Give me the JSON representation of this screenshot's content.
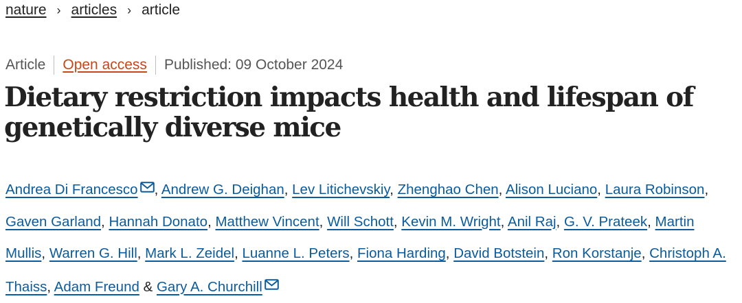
{
  "breadcrumb": {
    "items": [
      "nature",
      "articles"
    ],
    "current": "article",
    "separator": "›"
  },
  "meta": {
    "type": "Article",
    "access": "Open access",
    "published": "Published: 09 October 2024"
  },
  "title": "Dietary restriction impacts health and lifespan of genetically diverse mice",
  "authors": [
    "Andrea Di Francesco",
    "Andrew G. Deighan",
    "Lev Litichevskiy",
    "Zhenghao Chen",
    "Alison Luciano",
    "Laura Robinson",
    "Gaven Garland",
    "Hannah Donato",
    "Matthew Vincent",
    "Will Schott",
    "Kevin M. Wright",
    "Anil Raj",
    "G. V. Prateek",
    "Martin Mullis",
    "Warren G. Hill",
    "Mark L. Zeidel",
    "Luanne L. Peters",
    "Fiona Harding",
    "David Botstein",
    "Ron Korstanje",
    "Christoph A. Thaiss",
    "Adam Freund",
    "Gary A. Churchill"
  ],
  "separators": {
    "comma": ",",
    "ampersand": "&"
  },
  "colors": {
    "link": "#0a5b9e",
    "open_access": "#c4471a",
    "text": "#222222",
    "meta": "#555555"
  },
  "icons": {
    "corresponding_author": "mail-icon"
  }
}
